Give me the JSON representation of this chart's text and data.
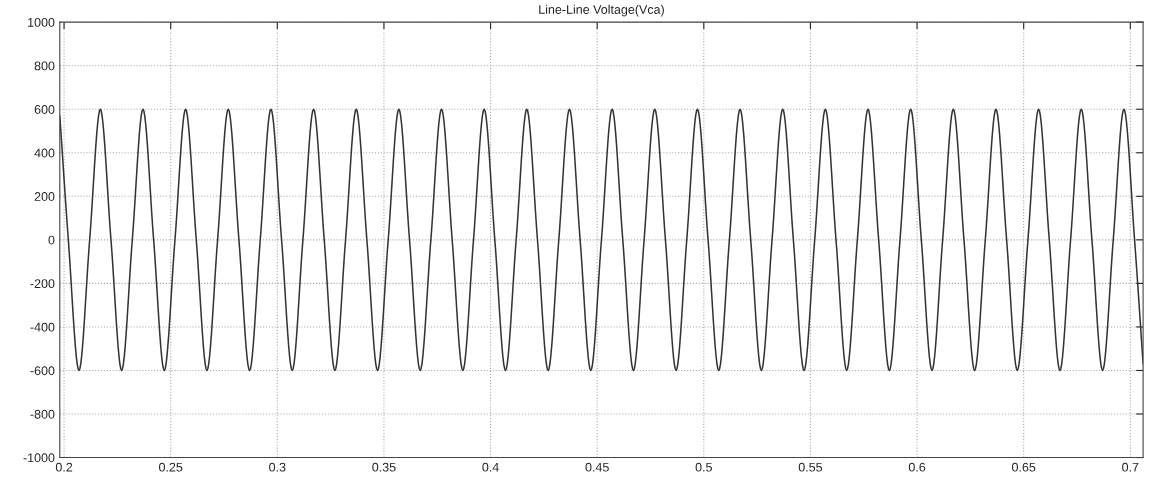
{
  "chart_data": {
    "type": "line",
    "title": "Line-Line Voltage(Vca)",
    "x": [
      0.198,
      0.202,
      0.207,
      0.212,
      0.217,
      0.222,
      0.227,
      0.232,
      0.237,
      0.242,
      0.247,
      0.252,
      0.257,
      0.262,
      0.267,
      0.272,
      0.277,
      0.282,
      0.287,
      0.292,
      0.297,
      0.302,
      0.307,
      0.312,
      0.317,
      0.322,
      0.327,
      0.332,
      0.337,
      0.342,
      0.347,
      0.352,
      0.357,
      0.362,
      0.367,
      0.372,
      0.377,
      0.382,
      0.387,
      0.392,
      0.397,
      0.402,
      0.407,
      0.412,
      0.417,
      0.422,
      0.427,
      0.432,
      0.437,
      0.442,
      0.447,
      0.452,
      0.457,
      0.462,
      0.467,
      0.472,
      0.477,
      0.482,
      0.487,
      0.492,
      0.497,
      0.502,
      0.507,
      0.512,
      0.517,
      0.522,
      0.527,
      0.532,
      0.537,
      0.542,
      0.547,
      0.552,
      0.557,
      0.562,
      0.567,
      0.572,
      0.577,
      0.582,
      0.587,
      0.592,
      0.597,
      0.602,
      0.607,
      0.612,
      0.617,
      0.622,
      0.627,
      0.632,
      0.637,
      0.642,
      0.647,
      0.652,
      0.657,
      0.662,
      0.667,
      0.672,
      0.677,
      0.682,
      0.687,
      0.692,
      0.697,
      0.702,
      0.706
    ],
    "series": [
      {
        "color": "#333333",
        "values": [
          570,
          0,
          -600,
          0,
          600,
          0,
          -600,
          0,
          600,
          0,
          -600,
          0,
          600,
          0,
          -600,
          0,
          600,
          0,
          -600,
          0,
          600,
          0,
          -600,
          0,
          600,
          0,
          -600,
          0,
          600,
          0,
          -600,
          0,
          600,
          0,
          -600,
          0,
          600,
          0,
          -600,
          0,
          600,
          0,
          -600,
          0,
          600,
          0,
          -600,
          0,
          600,
          0,
          -600,
          0,
          600,
          0,
          -600,
          0,
          600,
          0,
          -600,
          0,
          600,
          0,
          -600,
          0,
          600,
          0,
          -600,
          0,
          600,
          0,
          -600,
          0,
          600,
          0,
          -600,
          0,
          600,
          0,
          -600,
          0,
          600,
          0,
          -600,
          0,
          600,
          0,
          -600,
          0,
          600,
          0,
          -600,
          0,
          600,
          0,
          -600,
          0,
          600,
          0,
          -600,
          0,
          600,
          0,
          -570
        ]
      }
    ],
    "xlim": [
      0.198,
      0.706
    ],
    "ylim": [
      -1000,
      1000
    ],
    "xticks": [
      0.2,
      0.25,
      0.3,
      0.35,
      0.4,
      0.45,
      0.5,
      0.55,
      0.6,
      0.65,
      0.7
    ],
    "yticks": [
      -1000,
      -800,
      -600,
      -400,
      -200,
      0,
      200,
      400,
      600,
      800,
      1000
    ],
    "grid": true,
    "line_style": "solid",
    "marker": "none"
  }
}
